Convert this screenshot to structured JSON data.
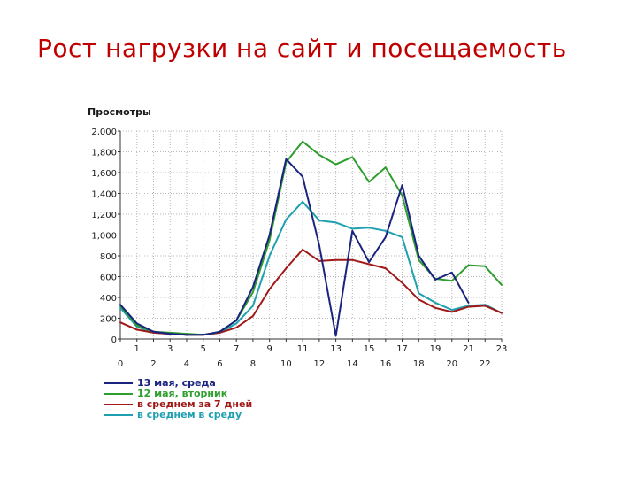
{
  "slide": {
    "title": "Рост нагрузки на сайт и посещаемость"
  },
  "chart_data": {
    "type": "line",
    "title": "",
    "ylabel": "Просмотры",
    "xlabel": "",
    "ylim": [
      0,
      2000
    ],
    "xlim": [
      0,
      23
    ],
    "grid": true,
    "legend_position": "bottom-left",
    "y_ticks": [
      "0",
      "200",
      "400",
      "600",
      "800",
      "1,000",
      "1,200",
      "1,400",
      "1,600",
      "1,800",
      "2,000"
    ],
    "x_ticks_odd": [
      "1",
      "3",
      "5",
      "7",
      "9",
      "11",
      "13",
      "15",
      "17",
      "19",
      "21",
      "23"
    ],
    "x_ticks_even": [
      "0",
      "2",
      "4",
      "6",
      "8",
      "10",
      "12",
      "14",
      "16",
      "18",
      "20",
      "22"
    ],
    "series": [
      {
        "name": "13 мая, среда",
        "color": "#1a237e",
        "x": [
          0,
          1,
          2,
          3,
          4,
          5,
          6,
          7,
          8,
          9,
          10,
          11,
          12,
          13,
          14,
          15,
          16,
          17,
          18,
          19,
          20,
          21
        ],
        "values": [
          330,
          150,
          70,
          50,
          40,
          40,
          70,
          180,
          500,
          1000,
          1730,
          1560,
          900,
          30,
          1040,
          740,
          980,
          1480,
          800,
          570,
          640,
          350
        ]
      },
      {
        "name": "12 мая, вторник",
        "color": "#2e9e2e",
        "x": [
          0,
          1,
          2,
          3,
          4,
          5,
          6,
          7,
          8,
          9,
          10,
          11,
          12,
          13,
          14,
          15,
          16,
          17,
          18,
          19,
          20,
          21,
          22,
          23
        ],
        "values": [
          320,
          130,
          70,
          60,
          50,
          40,
          70,
          180,
          450,
          950,
          1700,
          1900,
          1770,
          1680,
          1750,
          1510,
          1650,
          1380,
          760,
          580,
          560,
          710,
          700,
          520
        ]
      },
      {
        "name": "в среднем за 7 дней",
        "color": "#a01818",
        "x": [
          0,
          1,
          2,
          3,
          4,
          5,
          6,
          7,
          8,
          9,
          10,
          11,
          12,
          13,
          14,
          15,
          16,
          17,
          18,
          19,
          20,
          21,
          22,
          23
        ],
        "values": [
          160,
          90,
          60,
          50,
          40,
          40,
          60,
          110,
          220,
          480,
          680,
          860,
          750,
          760,
          760,
          720,
          680,
          540,
          380,
          300,
          260,
          310,
          320,
          250
        ]
      },
      {
        "name": "в среднем в среду",
        "color": "#1ea0b0",
        "x": [
          0,
          1,
          2,
          3,
          4,
          5,
          6,
          7,
          8,
          9,
          10,
          11,
          12,
          13,
          14,
          15,
          16,
          17,
          18,
          19,
          20,
          21,
          22,
          23
        ],
        "values": [
          300,
          120,
          60,
          50,
          40,
          40,
          60,
          150,
          320,
          800,
          1150,
          1320,
          1140,
          1120,
          1060,
          1070,
          1040,
          980,
          440,
          350,
          280,
          320,
          330,
          250
        ]
      }
    ]
  }
}
